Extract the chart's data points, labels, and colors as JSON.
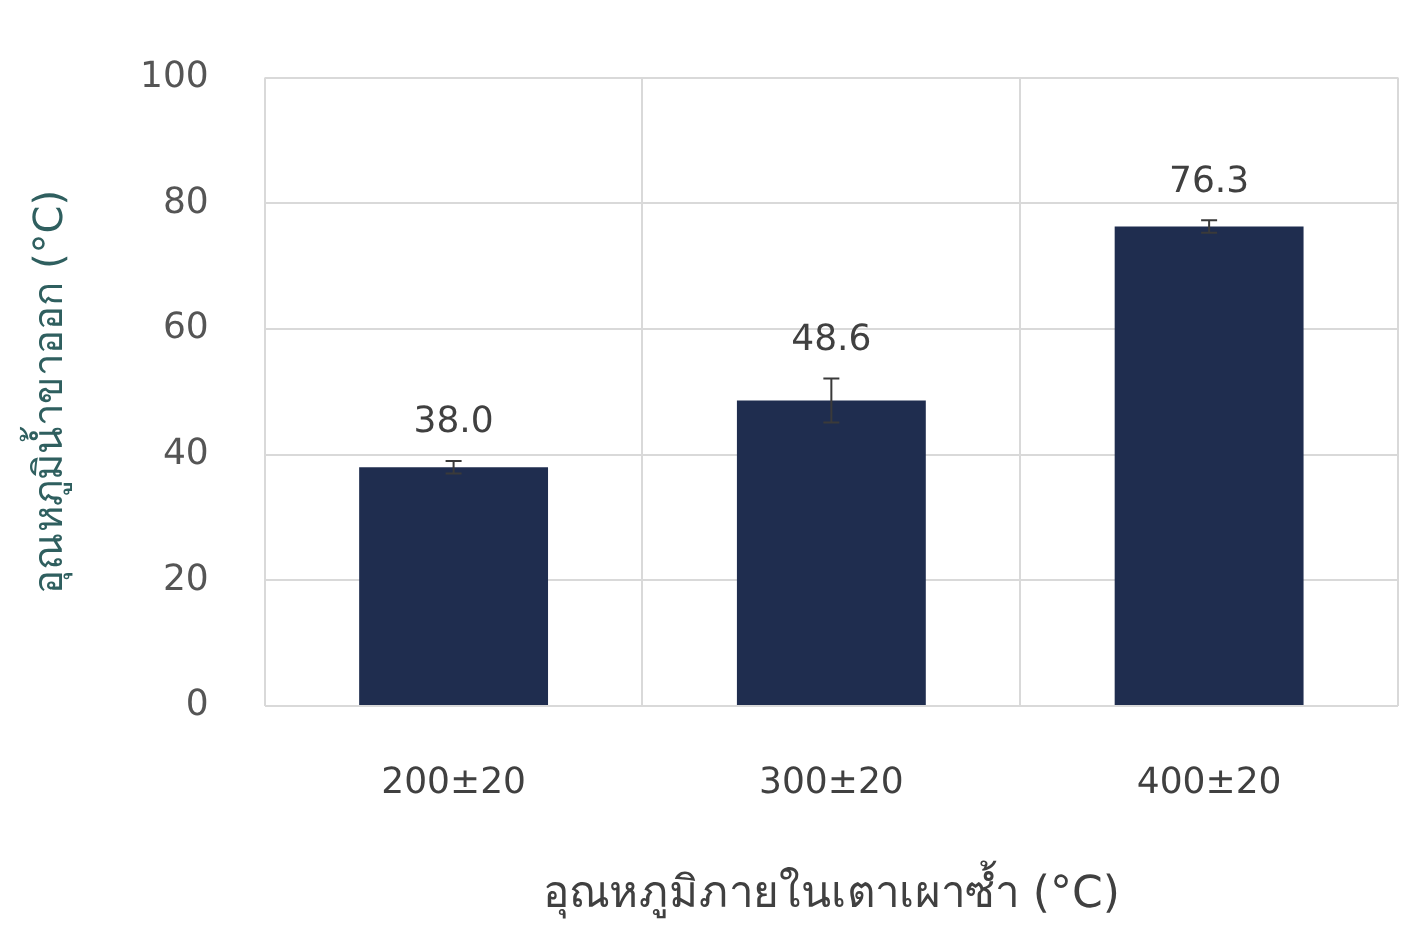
{
  "chart_data": {
    "type": "bar",
    "xlabel": "อุณหภูมิภายในเตาเผาซ้ำ (°C)",
    "ylabel": "อุณหภูมิน้ำขาออก (°C)",
    "categories": [
      "200±20",
      "300±20",
      "400±20"
    ],
    "values": [
      38.0,
      48.6,
      76.3
    ],
    "value_labels": [
      "38.0",
      "48.6",
      "76.3"
    ],
    "errors": [
      1,
      3.5,
      1
    ],
    "color": "#1f2d4f",
    "ylim": [
      0,
      100
    ],
    "yticks": [
      0,
      20,
      40,
      60,
      80,
      100
    ],
    "grid": true,
    "legend": false
  }
}
